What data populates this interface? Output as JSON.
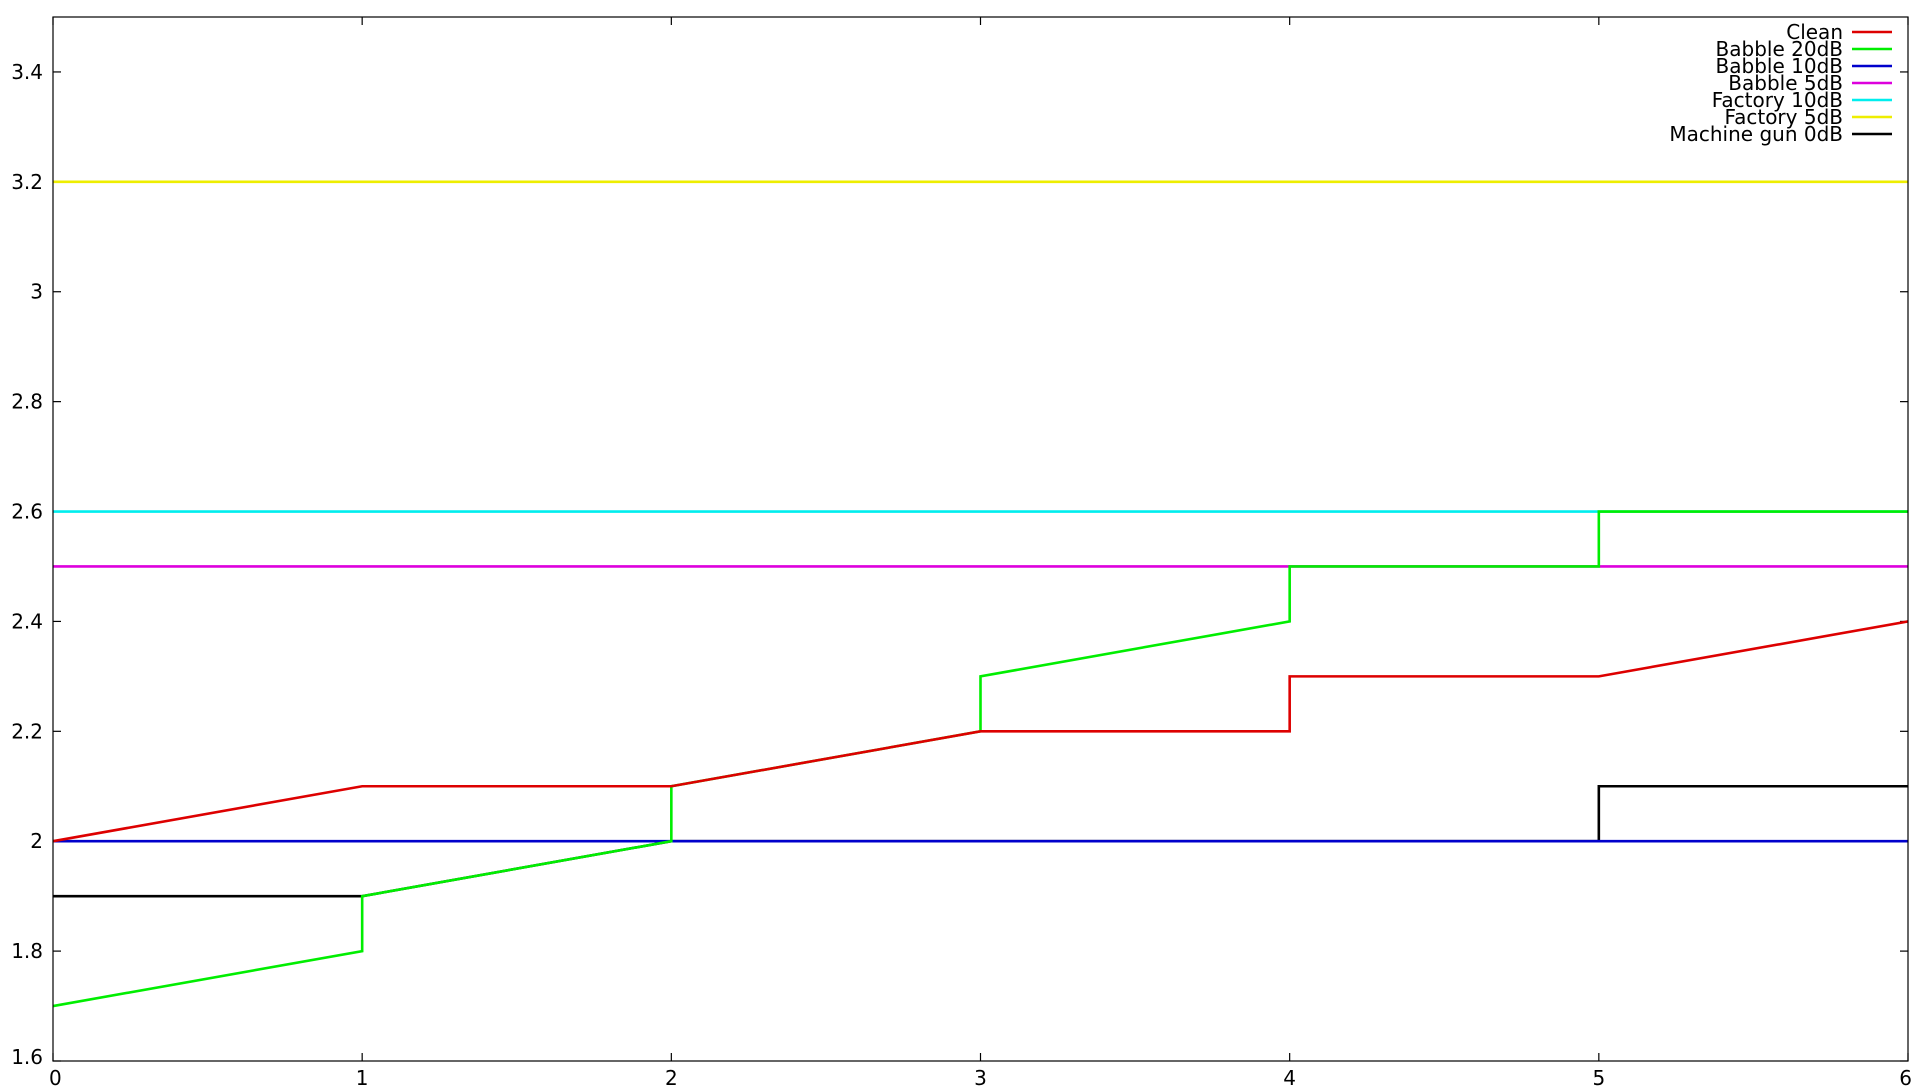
{
  "chart_data": {
    "type": "line",
    "title": "",
    "xlabel": "",
    "ylabel": "",
    "xlim": [
      0,
      6
    ],
    "ylim": [
      1.6,
      3.5
    ],
    "grid": false,
    "legend_position": "top-right",
    "x_ticks": [
      0,
      1,
      2,
      3,
      4,
      5,
      6
    ],
    "x_tick_labels": [
      "0",
      "1",
      "2",
      "3",
      "4",
      "5",
      "6"
    ],
    "y_ticks": [
      1.6,
      1.8,
      2.0,
      2.2,
      2.4,
      2.6,
      2.8,
      3.0,
      3.2,
      3.4
    ],
    "y_tick_labels": [
      "1.6",
      "1.8",
      "2",
      "2.2",
      "2.4",
      "2.6",
      "2.8",
      "3",
      "3.2",
      "3.4"
    ],
    "series": [
      {
        "name": "Clean",
        "color": "#dd0000",
        "points": [
          [
            0,
            2.0
          ],
          [
            1,
            2.1
          ],
          [
            2,
            2.1
          ],
          [
            3,
            2.2
          ],
          [
            4,
            2.2
          ],
          [
            4,
            2.3
          ],
          [
            5,
            2.3
          ],
          [
            6,
            2.4
          ]
        ]
      },
      {
        "name": "Babble 20dB",
        "color": "#00ee00",
        "points": [
          [
            0,
            1.7
          ],
          [
            1,
            1.8
          ],
          [
            1,
            1.9
          ],
          [
            2,
            2.0
          ],
          [
            2,
            2.1
          ],
          [
            3,
            2.2
          ],
          [
            3,
            2.3
          ],
          [
            4,
            2.4
          ],
          [
            4,
            2.5
          ],
          [
            5,
            2.5
          ],
          [
            5,
            2.6
          ],
          [
            6,
            2.6
          ]
        ]
      },
      {
        "name": "Babble 10dB",
        "color": "#0000cc",
        "points": [
          [
            0,
            2.0
          ],
          [
            6,
            2.0
          ]
        ]
      },
      {
        "name": "Babble 5dB",
        "color": "#dd00dd",
        "points": [
          [
            0,
            2.5
          ],
          [
            6,
            2.5
          ]
        ]
      },
      {
        "name": "Factory 10dB",
        "color": "#00eeee",
        "points": [
          [
            0,
            2.6
          ],
          [
            6,
            2.6
          ]
        ]
      },
      {
        "name": "Factory 5dB",
        "color": "#eeee00",
        "points": [
          [
            0,
            3.2
          ],
          [
            6,
            3.2
          ]
        ]
      },
      {
        "name": "Machine gun 0dB",
        "color": "#000000",
        "points": [
          [
            0,
            1.9
          ],
          [
            1,
            1.9
          ],
          [
            2,
            2.0
          ],
          [
            5,
            2.0
          ],
          [
            5,
            2.1
          ],
          [
            6,
            2.1
          ]
        ]
      }
    ]
  }
}
